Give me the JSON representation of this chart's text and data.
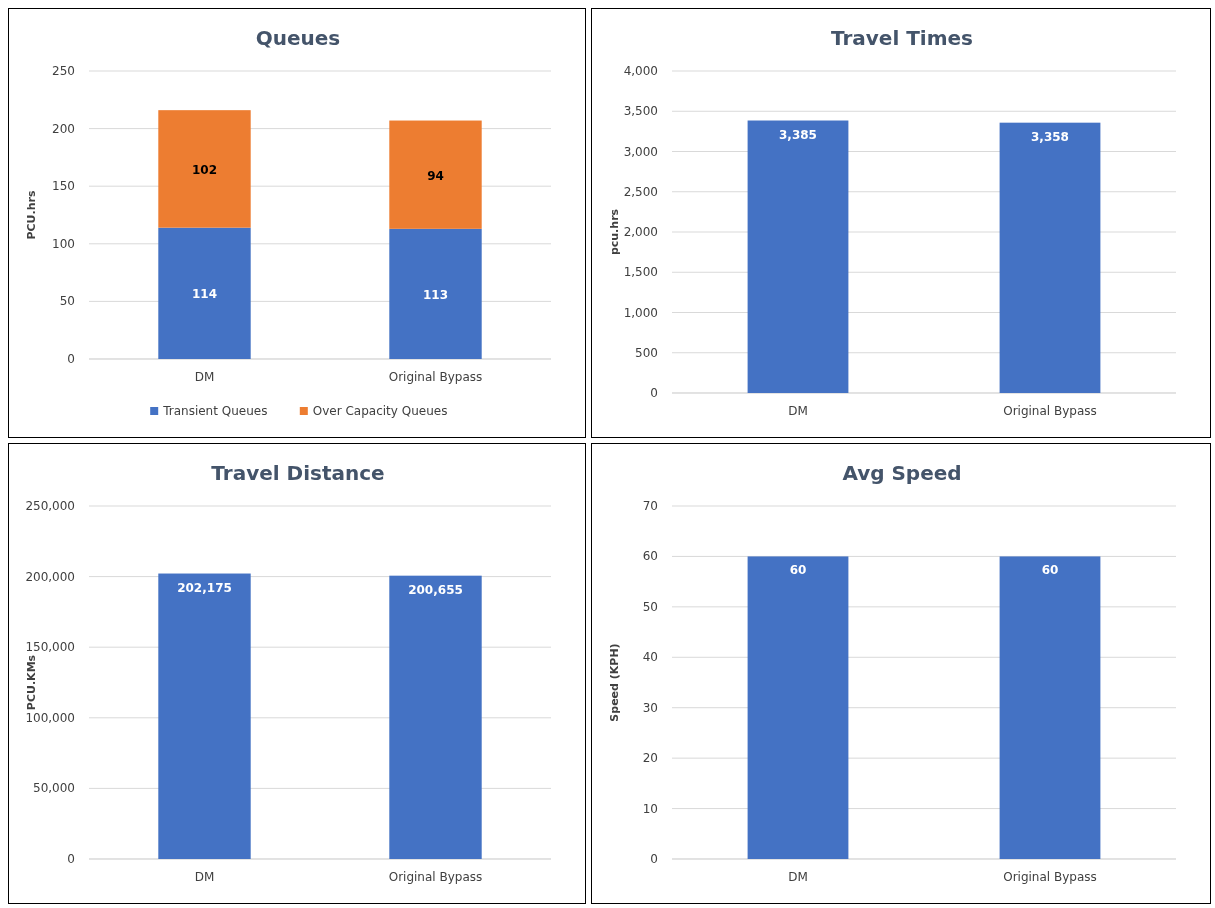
{
  "chart_data": [
    {
      "type": "bar",
      "title": "Queues",
      "ylabel": "PCU.hrs",
      "categories": [
        "DM",
        "Original Bypass"
      ],
      "stacked": true,
      "series": [
        {
          "name": "Transient Queues",
          "color": "#4472c4",
          "values": [
            114,
            113
          ]
        },
        {
          "name": "Over Capacity Queues",
          "color": "#ed7d31",
          "values": [
            102,
            94
          ]
        }
      ],
      "ylim": [
        0,
        250
      ],
      "yticks": [
        0,
        50,
        100,
        150,
        200,
        250
      ],
      "grid": "y",
      "legend": "bottom",
      "data_labels": true
    },
    {
      "type": "bar",
      "title": "Travel Times",
      "ylabel": "pcu.hrs",
      "categories": [
        "DM",
        "Original Bypass"
      ],
      "values": [
        3385,
        3358
      ],
      "color": "#4472c4",
      "ylim": [
        0,
        4000
      ],
      "yticks": [
        0,
        {
          "value": 500,
          "label": "500"
        },
        {
          "value": 1000,
          "label": "1,000"
        },
        {
          "value": 1500,
          "label": "1,500"
        },
        {
          "value": 2000,
          "label": "2,000"
        },
        {
          "value": 2500,
          "label": "2,500"
        },
        {
          "value": 3000,
          "label": "3,000"
        },
        {
          "value": 3500,
          "label": "3,500"
        },
        {
          "value": 4000,
          "label": "4,000"
        }
      ],
      "grid": "y",
      "value_labels": [
        "3,385",
        "3,358"
      ]
    },
    {
      "type": "bar",
      "title": "Travel Distance",
      "ylabel": "PCU.KMs",
      "categories": [
        "DM",
        "Original Bypass"
      ],
      "values": [
        202175,
        200655
      ],
      "color": "#4472c4",
      "ylim": [
        0,
        250000
      ],
      "yticks": [
        0,
        {
          "value": 50000,
          "label": "50,000"
        },
        {
          "value": 100000,
          "label": "100,000"
        },
        {
          "value": 150000,
          "label": "150,000"
        },
        {
          "value": 200000,
          "label": "200,000"
        },
        {
          "value": 250000,
          "label": "250,000"
        }
      ],
      "grid": "y",
      "value_labels": [
        "202,175",
        "200,655"
      ]
    },
    {
      "type": "bar",
      "title": "Avg Speed",
      "ylabel": "Speed (KPH)",
      "categories": [
        "DM",
        "Original Bypass"
      ],
      "values": [
        60,
        60
      ],
      "color": "#4472c4",
      "ylim": [
        0,
        70
      ],
      "yticks": [
        0,
        10,
        20,
        30,
        40,
        50,
        60,
        70
      ],
      "grid": "y",
      "data_labels": true
    }
  ]
}
